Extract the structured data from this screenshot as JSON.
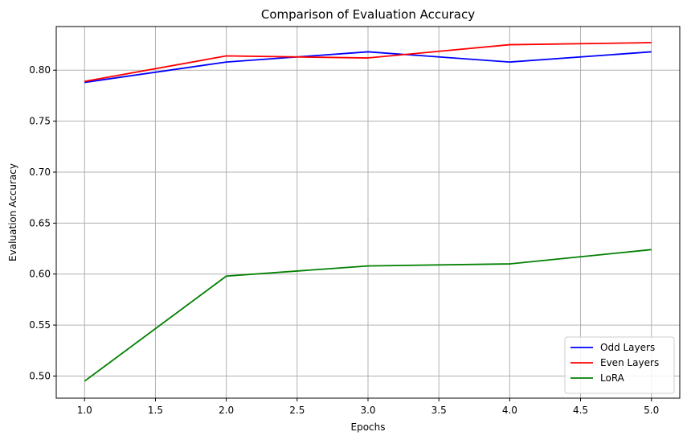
{
  "chart_data": {
    "type": "line",
    "title": "Comparison of Evaluation Accuracy",
    "xlabel": "Epochs",
    "ylabel": "Evaluation Accuracy",
    "x": [
      1,
      2,
      3,
      4,
      5
    ],
    "xlim": [
      0.8,
      5.2
    ],
    "ylim": [
      0.4783,
      0.8428
    ],
    "xticks": [
      1.0,
      1.5,
      2.0,
      2.5,
      3.0,
      3.5,
      4.0,
      4.5,
      5.0
    ],
    "yticks": [
      0.5,
      0.55,
      0.6,
      0.65,
      0.7,
      0.75,
      0.8
    ],
    "xtick_labels": [
      "1.0",
      "1.5",
      "2.0",
      "2.5",
      "3.0",
      "3.5",
      "4.0",
      "4.5",
      "5.0"
    ],
    "ytick_labels": [
      "0.50",
      "0.55",
      "0.60",
      "0.65",
      "0.70",
      "0.75",
      "0.80"
    ],
    "grid": true,
    "legend_position": "lower-right",
    "series": [
      {
        "name": "Odd Layers",
        "color": "#0000ff",
        "values": [
          0.788,
          0.808,
          0.818,
          0.808,
          0.818
        ]
      },
      {
        "name": "Even Layers",
        "color": "#ff0000",
        "values": [
          0.789,
          0.814,
          0.812,
          0.825,
          0.827
        ]
      },
      {
        "name": "LoRA",
        "color": "#008000",
        "values": [
          0.495,
          0.598,
          0.608,
          0.61,
          0.624
        ]
      }
    ]
  }
}
